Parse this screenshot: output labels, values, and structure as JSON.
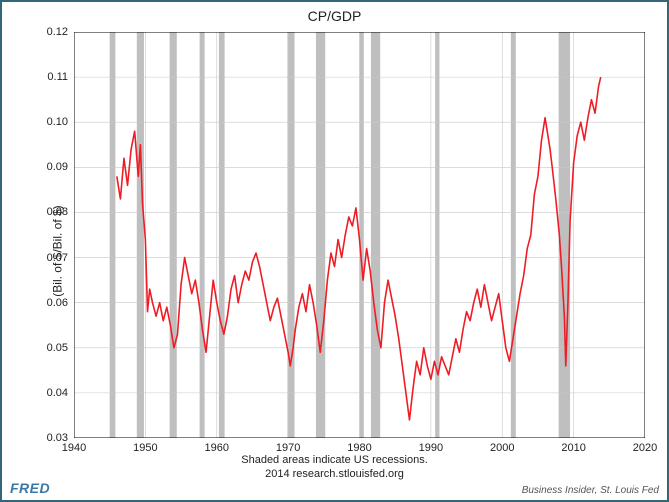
{
  "chart": {
    "type": "line",
    "title": "CP/GDP",
    "ylabel": "(Bil. of $/Bil. of $)",
    "subcaption1": "Shaded areas indicate US recessions.",
    "subcaption2": "2014 research.stlouisfed.org",
    "brand": "FRED",
    "attribution": "Business Insider, St. Louis Fed",
    "background_color": "#ffffff",
    "frame_border_color": "#336677",
    "plot_border_color": "#000000",
    "grid_color": "#c8c8c8",
    "tick_color": "#000000",
    "line_color": "#ee1c25",
    "line_width": 1.6,
    "recession_fill": "#bfbfbf",
    "xlim": [
      1940,
      2020
    ],
    "ylim": [
      0.03,
      0.12
    ],
    "ytick_step": 0.01,
    "xtick_step": 10,
    "yticks": [
      0.03,
      0.04,
      0.05,
      0.06,
      0.07,
      0.08,
      0.09,
      0.1,
      0.11,
      0.12
    ],
    "xticks": [
      1940,
      1950,
      1960,
      1970,
      1980,
      1990,
      2000,
      2010,
      2020
    ],
    "recessions": [
      [
        1945.0,
        1945.8
      ],
      [
        1948.8,
        1949.8
      ],
      [
        1953.4,
        1954.4
      ],
      [
        1957.6,
        1958.3
      ],
      [
        1960.3,
        1961.1
      ],
      [
        1969.9,
        1970.9
      ],
      [
        1973.9,
        1975.2
      ],
      [
        1980.0,
        1980.6
      ],
      [
        1981.6,
        1982.9
      ],
      [
        1990.6,
        1991.2
      ],
      [
        2001.2,
        2001.9
      ],
      [
        2007.9,
        2009.5
      ]
    ],
    "series": [
      [
        1946.0,
        0.088
      ],
      [
        1946.5,
        0.083
      ],
      [
        1947.0,
        0.092
      ],
      [
        1947.5,
        0.086
      ],
      [
        1948.0,
        0.094
      ],
      [
        1948.5,
        0.098
      ],
      [
        1949.0,
        0.088
      ],
      [
        1949.3,
        0.095
      ],
      [
        1949.6,
        0.082
      ],
      [
        1950.0,
        0.074
      ],
      [
        1950.3,
        0.058
      ],
      [
        1950.6,
        0.063
      ],
      [
        1951.0,
        0.06
      ],
      [
        1951.5,
        0.057
      ],
      [
        1952.0,
        0.06
      ],
      [
        1952.5,
        0.056
      ],
      [
        1953.0,
        0.059
      ],
      [
        1953.5,
        0.055
      ],
      [
        1954.0,
        0.05
      ],
      [
        1954.5,
        0.053
      ],
      [
        1955.0,
        0.064
      ],
      [
        1955.5,
        0.07
      ],
      [
        1956.0,
        0.066
      ],
      [
        1956.5,
        0.062
      ],
      [
        1957.0,
        0.065
      ],
      [
        1957.5,
        0.06
      ],
      [
        1958.0,
        0.054
      ],
      [
        1958.5,
        0.049
      ],
      [
        1959.0,
        0.057
      ],
      [
        1959.5,
        0.065
      ],
      [
        1960.0,
        0.06
      ],
      [
        1960.5,
        0.056
      ],
      [
        1961.0,
        0.053
      ],
      [
        1961.5,
        0.057
      ],
      [
        1962.0,
        0.063
      ],
      [
        1962.5,
        0.066
      ],
      [
        1963.0,
        0.06
      ],
      [
        1963.5,
        0.064
      ],
      [
        1964.0,
        0.067
      ],
      [
        1964.5,
        0.065
      ],
      [
        1965.0,
        0.069
      ],
      [
        1965.5,
        0.071
      ],
      [
        1966.0,
        0.068
      ],
      [
        1966.5,
        0.064
      ],
      [
        1967.0,
        0.06
      ],
      [
        1967.5,
        0.056
      ],
      [
        1968.0,
        0.059
      ],
      [
        1968.5,
        0.061
      ],
      [
        1969.0,
        0.057
      ],
      [
        1969.5,
        0.053
      ],
      [
        1970.0,
        0.049
      ],
      [
        1970.3,
        0.046
      ],
      [
        1970.7,
        0.05
      ],
      [
        1971.0,
        0.054
      ],
      [
        1971.5,
        0.059
      ],
      [
        1972.0,
        0.062
      ],
      [
        1972.5,
        0.058
      ],
      [
        1973.0,
        0.064
      ],
      [
        1973.5,
        0.06
      ],
      [
        1974.0,
        0.055
      ],
      [
        1974.5,
        0.049
      ],
      [
        1975.0,
        0.056
      ],
      [
        1975.5,
        0.065
      ],
      [
        1976.0,
        0.071
      ],
      [
        1976.5,
        0.068
      ],
      [
        1977.0,
        0.074
      ],
      [
        1977.5,
        0.07
      ],
      [
        1978.0,
        0.075
      ],
      [
        1978.5,
        0.079
      ],
      [
        1979.0,
        0.077
      ],
      [
        1979.5,
        0.081
      ],
      [
        1980.0,
        0.074
      ],
      [
        1980.5,
        0.065
      ],
      [
        1981.0,
        0.072
      ],
      [
        1981.5,
        0.067
      ],
      [
        1982.0,
        0.06
      ],
      [
        1982.5,
        0.054
      ],
      [
        1983.0,
        0.05
      ],
      [
        1983.5,
        0.06
      ],
      [
        1984.0,
        0.065
      ],
      [
        1984.5,
        0.061
      ],
      [
        1985.0,
        0.057
      ],
      [
        1985.5,
        0.052
      ],
      [
        1986.0,
        0.046
      ],
      [
        1986.5,
        0.04
      ],
      [
        1987.0,
        0.034
      ],
      [
        1987.5,
        0.041
      ],
      [
        1988.0,
        0.047
      ],
      [
        1988.5,
        0.044
      ],
      [
        1989.0,
        0.05
      ],
      [
        1989.5,
        0.046
      ],
      [
        1990.0,
        0.043
      ],
      [
        1990.5,
        0.047
      ],
      [
        1991.0,
        0.044
      ],
      [
        1991.5,
        0.048
      ],
      [
        1992.0,
        0.046
      ],
      [
        1992.5,
        0.044
      ],
      [
        1993.0,
        0.048
      ],
      [
        1993.5,
        0.052
      ],
      [
        1994.0,
        0.049
      ],
      [
        1994.5,
        0.054
      ],
      [
        1995.0,
        0.058
      ],
      [
        1995.5,
        0.056
      ],
      [
        1996.0,
        0.06
      ],
      [
        1996.5,
        0.063
      ],
      [
        1997.0,
        0.059
      ],
      [
        1997.5,
        0.064
      ],
      [
        1998.0,
        0.06
      ],
      [
        1998.5,
        0.056
      ],
      [
        1999.0,
        0.059
      ],
      [
        1999.5,
        0.062
      ],
      [
        2000.0,
        0.056
      ],
      [
        2000.5,
        0.05
      ],
      [
        2001.0,
        0.047
      ],
      [
        2001.5,
        0.052
      ],
      [
        2002.0,
        0.057
      ],
      [
        2002.5,
        0.062
      ],
      [
        2003.0,
        0.066
      ],
      [
        2003.5,
        0.072
      ],
      [
        2004.0,
        0.075
      ],
      [
        2004.5,
        0.084
      ],
      [
        2005.0,
        0.088
      ],
      [
        2005.5,
        0.096
      ],
      [
        2006.0,
        0.101
      ],
      [
        2006.3,
        0.098
      ],
      [
        2006.7,
        0.094
      ],
      [
        2007.0,
        0.09
      ],
      [
        2007.5,
        0.083
      ],
      [
        2008.0,
        0.075
      ],
      [
        2008.3,
        0.068
      ],
      [
        2008.7,
        0.057
      ],
      [
        2008.9,
        0.046
      ],
      [
        2009.2,
        0.06
      ],
      [
        2009.5,
        0.078
      ],
      [
        2010.0,
        0.091
      ],
      [
        2010.5,
        0.097
      ],
      [
        2011.0,
        0.1
      ],
      [
        2011.5,
        0.096
      ],
      [
        2012.0,
        0.101
      ],
      [
        2012.5,
        0.105
      ],
      [
        2013.0,
        0.102
      ],
      [
        2013.5,
        0.108
      ],
      [
        2013.8,
        0.11
      ]
    ]
  }
}
